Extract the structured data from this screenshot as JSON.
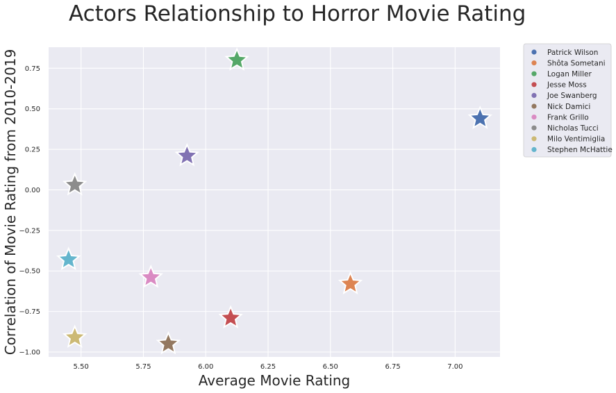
{
  "chart_data": {
    "type": "scatter",
    "title": "Actors Relationship to Horror Movie Rating",
    "xlabel": "Average Movie Rating",
    "ylabel": "Correlation of Movie Rating from 2010-2019",
    "xlim": [
      5.37,
      7.18
    ],
    "ylim": [
      -1.03,
      0.88
    ],
    "x_ticks": [
      5.5,
      5.75,
      6.0,
      6.25,
      6.5,
      6.75,
      7.0
    ],
    "x_tick_labels": [
      "5.50",
      "5.75",
      "6.00",
      "6.25",
      "6.50",
      "6.75",
      "7.00"
    ],
    "y_ticks": [
      0.75,
      0.5,
      0.25,
      0.0,
      -0.25,
      -0.5,
      -0.75,
      -1.0
    ],
    "y_tick_labels": [
      "0.75",
      "0.50",
      "0.25",
      "0.00",
      "−0.25",
      "−0.50",
      "−0.75",
      "−1.00"
    ],
    "grid": true,
    "marker": "star",
    "legend_position": "outside-right",
    "series": [
      {
        "name": "Patrick Wilson",
        "x": 7.1,
        "y": 0.44,
        "color": "#4c72b0"
      },
      {
        "name": "Shôta Sometani",
        "x": 6.58,
        "y": -0.58,
        "color": "#dd8452"
      },
      {
        "name": "Logan Miller",
        "x": 6.125,
        "y": 0.8,
        "color": "#55a868"
      },
      {
        "name": "Jesse Moss",
        "x": 6.1,
        "y": -0.79,
        "color": "#c44e52"
      },
      {
        "name": "Joe Swanberg",
        "x": 5.925,
        "y": 0.21,
        "color": "#8172b3"
      },
      {
        "name": "Nick Damici",
        "x": 5.85,
        "y": -0.95,
        "color": "#937860"
      },
      {
        "name": "Frank Grillo",
        "x": 5.78,
        "y": -0.54,
        "color": "#da8bc3"
      },
      {
        "name": "Nicholas Tucci",
        "x": 5.475,
        "y": 0.03,
        "color": "#8c8c8c"
      },
      {
        "name": "Milo Ventimiglia",
        "x": 5.475,
        "y": -0.91,
        "color": "#ccb974"
      },
      {
        "name": "Stephen McHattie",
        "x": 5.45,
        "y": -0.43,
        "color": "#64b5cd"
      }
    ]
  }
}
